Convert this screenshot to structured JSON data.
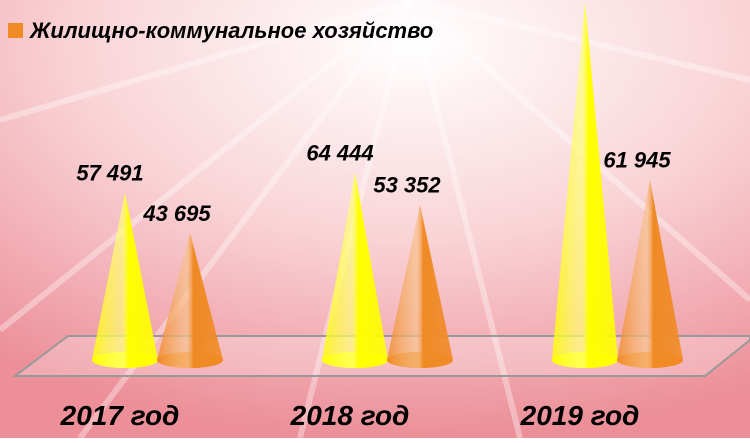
{
  "chart_data": {
    "type": "cone",
    "categories": [
      "2017 год",
      "2018 год",
      "2019 год"
    ],
    "series": [
      {
        "color": "#ffff00",
        "values": [
          57491,
          64444,
          123000
        ],
        "value_labels": [
          "57 491",
          "64 444",
          null
        ]
      },
      {
        "name": "Жилищно-коммунальное хозяйство",
        "color": "#f08a24",
        "values": [
          43695,
          53352,
          61945
        ],
        "value_labels": [
          "43 695",
          "53 352",
          "61 945"
        ]
      }
    ],
    "legend": "top-left"
  }
}
